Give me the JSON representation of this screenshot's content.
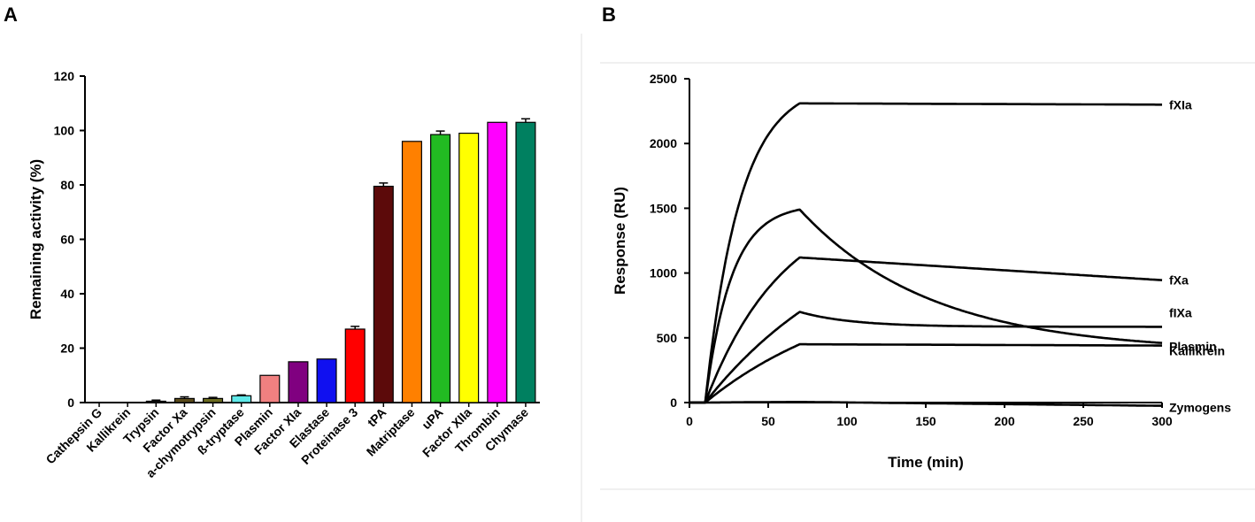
{
  "figure": {
    "panel_a_label": "A",
    "panel_b_label": "B"
  },
  "chart_data": [
    {
      "type": "bar",
      "panel": "A",
      "ylabel": "Remaining activity (%)",
      "ylim": [
        0,
        120
      ],
      "yticks": [
        0,
        20,
        40,
        60,
        80,
        100,
        120
      ],
      "categories": [
        "Cathepsin G",
        "Kallikrein",
        "Trypsin",
        "Factor Xa",
        "a-chymotrypsin",
        "ß-tryptase",
        "Plasmin",
        "Factor XIa",
        "Elastase",
        "Proteinase 3",
        "tPA",
        "Matriptase",
        "uPA",
        "Factor XIIa",
        "Thrombin",
        "Chymase"
      ],
      "values": [
        0,
        0,
        0.5,
        1.5,
        1.5,
        2.5,
        10,
        15,
        16,
        27,
        79.5,
        96,
        98.5,
        99,
        103,
        103
      ],
      "errors": [
        0,
        0,
        0.4,
        0.6,
        0.4,
        0.3,
        0,
        0,
        0,
        1.0,
        1.2,
        0,
        1.3,
        0,
        0,
        1.3
      ],
      "colors": [
        "#000000",
        "#000000",
        "#333333",
        "#5a4a1a",
        "#6b6b1f",
        "#5fe8e8",
        "#f08080",
        "#800080",
        "#1010f0",
        "#ff0000",
        "#5c0a0a",
        "#ff8000",
        "#22bb22",
        "#ffff00",
        "#ff00ff",
        "#008060"
      ]
    },
    {
      "type": "line",
      "panel": "B",
      "xlabel": "Time (min)",
      "ylabel": "Response (RU)",
      "xlim": [
        0,
        300
      ],
      "ylim": [
        0,
        2500
      ],
      "xticks": [
        0,
        50,
        100,
        150,
        200,
        250,
        300
      ],
      "yticks": [
        0,
        500,
        1000,
        1500,
        2000,
        2500
      ],
      "association": {
        "start": 10,
        "end": 70
      },
      "series": [
        {
          "name": "fXIa",
          "peak": 2310,
          "end_value": 2300,
          "assoc_shape": 0.045,
          "decay": "linear"
        },
        {
          "name": "fXa",
          "peak": 1120,
          "end_value": 945,
          "assoc_shape": 0.02,
          "decay": "linear"
        },
        {
          "name": "fIXa",
          "peak": 700,
          "end_value": 585,
          "assoc_shape": 0.01,
          "decay": "exp",
          "decay_k": 0.03
        },
        {
          "name": "Plasmin",
          "peak": 1490,
          "end_value": 460,
          "assoc_shape": 0.06,
          "decay": "exp",
          "decay_k": 0.012
        },
        {
          "name": "Kallikrein",
          "peak": 450,
          "end_value": 440,
          "assoc_shape": 0.01,
          "decay": "linear"
        },
        {
          "name": "Zymogens",
          "peak": 5,
          "end_value": -25,
          "assoc_shape": 0.01,
          "decay": "linear"
        }
      ]
    }
  ]
}
